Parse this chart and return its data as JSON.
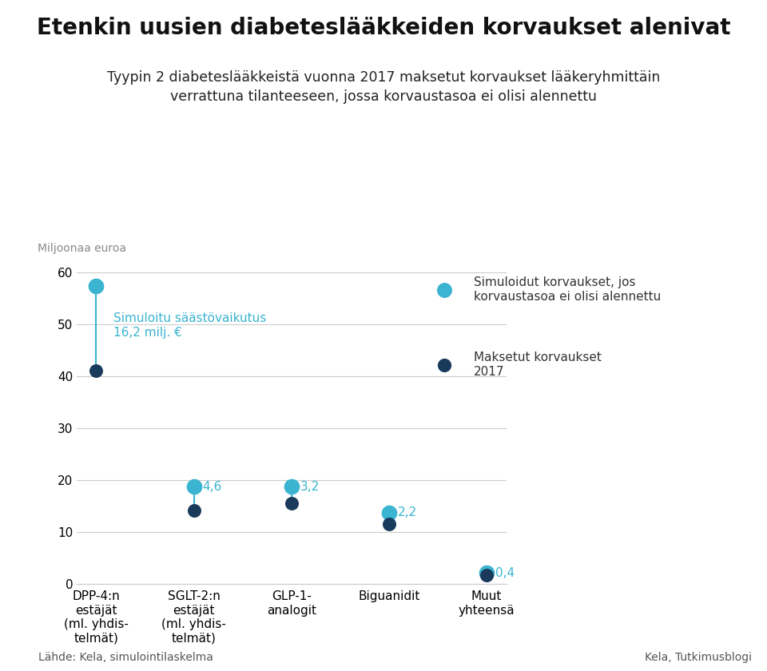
{
  "title": "Etenkin uusien diabeteslääkkeiden korvaukset alenivat",
  "subtitle": "Tyypin 2 diabeteslääkkeistä vuonna 2017 maksetut korvaukset lääkeryhmittäin\nverrattuna tilanteeseen, jossa korvaustasoa ei olisi alennettu",
  "ylabel": "Miljoonaa euroa",
  "categories": [
    "DPP-4:n\nestäjät\n(ml. yhdis-\ntelmät)",
    "SGLT-2:n\nestäjät\n(ml. yhdis-\ntelmät)",
    "GLP-1-\nanalogit",
    "Biguanidit",
    "Muut\nyhteensä"
  ],
  "simulated": [
    57.3,
    18.7,
    18.7,
    13.7,
    2.1
  ],
  "actual": [
    41.1,
    14.1,
    15.5,
    11.5,
    1.7
  ],
  "diff_labels": [
    "4,6",
    "3,2",
    "2,2",
    "0,4"
  ],
  "annotation_text": "Simuloitu säästövaikutus\n16,2 milj. €",
  "legend_sim": "Simuloidut korvaukset, jos\nkorvaustasoa ei olisi alennettu",
  "legend_act": "Maksetut korvaukset\n2017",
  "color_sim": "#3ab4d0",
  "color_act": "#1a3a5c",
  "annotation_color": "#3ab4d0",
  "ylim": [
    0,
    62
  ],
  "yticks": [
    0,
    10,
    20,
    30,
    40,
    50,
    60
  ],
  "source_left": "Lähde: Kela, simulointilaskelma",
  "source_right": "Kela, Tutkimusblogi",
  "background_color": "#ffffff",
  "grid_color": "#cccccc"
}
